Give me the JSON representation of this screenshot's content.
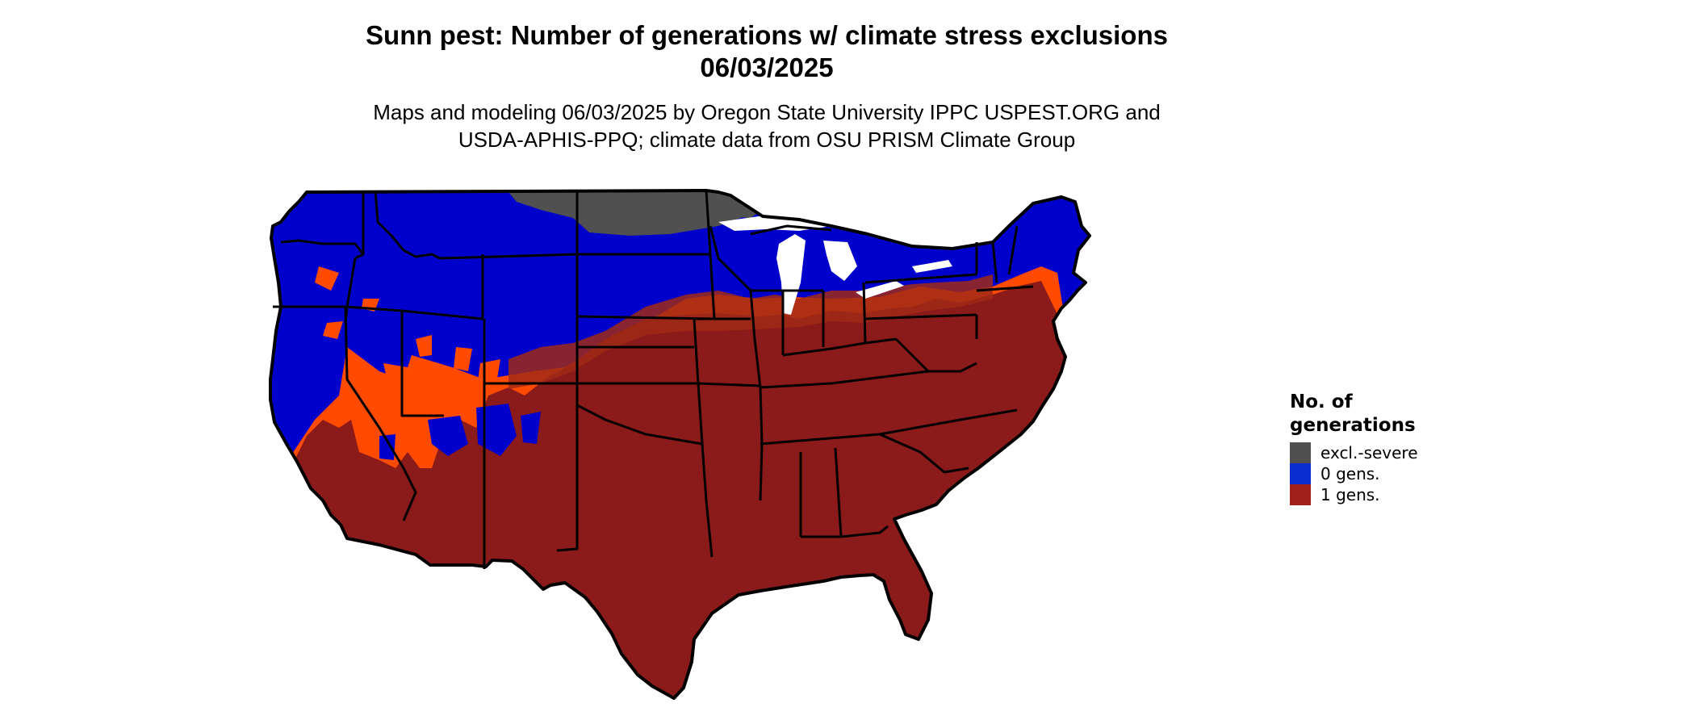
{
  "title": {
    "line1": "Sunn pest: Number of generations w/ climate stress exclusions",
    "line2": "06/03/2025"
  },
  "subtitle": {
    "line1": "Maps and modeling 06/03/2025 by Oregon State University IPPC USPEST.ORG and",
    "line2": "USDA-APHIS-PPQ; climate data from OSU PRISM Climate Group"
  },
  "legend": {
    "title_line1": "No. of",
    "title_line2": "generations",
    "items": [
      {
        "label": "excl.-severe",
        "color": "#505050"
      },
      {
        "label": "0 gens.",
        "color": "#0a2ed0"
      },
      {
        "label": "1 gens.",
        "color": "#a0201a"
      }
    ]
  },
  "map": {
    "colors": {
      "background_land": "#0000cc",
      "excluded": "#505050",
      "one_gen_dark": "#8b1a1a",
      "one_gen_mid": "#a02a16",
      "one_gen_transition": "#ff4a00",
      "border": "#000000"
    }
  }
}
